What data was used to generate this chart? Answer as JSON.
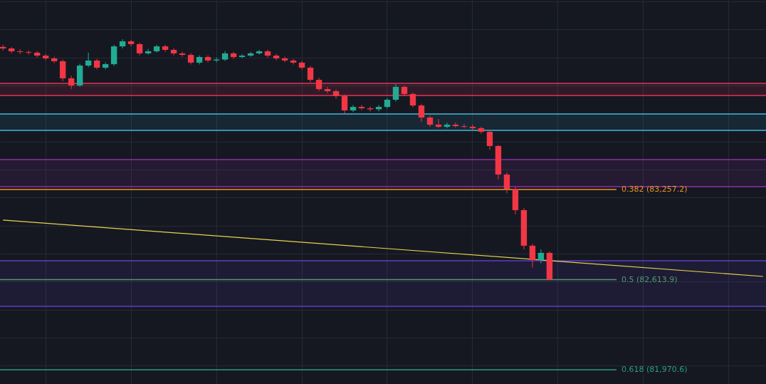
{
  "chart_data": {
    "type": "candlestick",
    "tick_labels": false,
    "grid": true,
    "categories": [
      null,
      null,
      null,
      null,
      null,
      null,
      null,
      null,
      null,
      null,
      null,
      null,
      null,
      null,
      null,
      null,
      null,
      null,
      null,
      null,
      null,
      null,
      null,
      null,
      null,
      null,
      null,
      null,
      null,
      null,
      null,
      null,
      null,
      null,
      null,
      null,
      null,
      null,
      null,
      null,
      null,
      null,
      null,
      null,
      null,
      null,
      null,
      null,
      null,
      null,
      null,
      null,
      null,
      null,
      null,
      null,
      null,
      null,
      null,
      null,
      null,
      null,
      null,
      null,
      null,
      null,
      null,
      null,
      null,
      null,
      null,
      null,
      null,
      null,
      null,
      null,
      null,
      null,
      null,
      null,
      null,
      null,
      null,
      null,
      null,
      null,
      null,
      null,
      null,
      null
    ],
    "ylim": [
      81869,
      84610
    ],
    "ohlc": [
      [
        84275,
        84290,
        84250,
        84264
      ],
      [
        84264,
        84275,
        84230,
        84244
      ],
      [
        84244,
        84258,
        84225,
        84239
      ],
      [
        84239,
        84250,
        84220,
        84234
      ],
      [
        84234,
        84245,
        84200,
        84213
      ],
      [
        84213,
        84225,
        84180,
        84193
      ],
      [
        84193,
        84205,
        84160,
        84173
      ],
      [
        84173,
        84185,
        84030,
        84051
      ],
      [
        84051,
        84070,
        83975,
        84000
      ],
      [
        84000,
        84155,
        83990,
        84142
      ],
      [
        84142,
        84235,
        84130,
        84178
      ],
      [
        84178,
        84190,
        84115,
        84127
      ],
      [
        84127,
        84165,
        84115,
        84152
      ],
      [
        84152,
        84290,
        84140,
        84279
      ],
      [
        84279,
        84330,
        84265,
        84315
      ],
      [
        84315,
        84325,
        84280,
        84295
      ],
      [
        84295,
        84305,
        84215,
        84229
      ],
      [
        84229,
        84260,
        84220,
        84244
      ],
      [
        84244,
        84290,
        84235,
        84279
      ],
      [
        84279,
        84290,
        84240,
        84254
      ],
      [
        84254,
        84265,
        84215,
        84229
      ],
      [
        84229,
        84240,
        84205,
        84218
      ],
      [
        84218,
        84230,
        84150,
        84163
      ],
      [
        84163,
        84215,
        84150,
        84203
      ],
      [
        84203,
        84215,
        84165,
        84178
      ],
      [
        84178,
        84200,
        84165,
        84185
      ],
      [
        84185,
        84245,
        84175,
        84229
      ],
      [
        84229,
        84240,
        84190,
        84203
      ],
      [
        84203,
        84225,
        84195,
        84213
      ],
      [
        84213,
        84240,
        84205,
        84229
      ],
      [
        84229,
        84255,
        84220,
        84244
      ],
      [
        84244,
        84255,
        84200,
        84213
      ],
      [
        84213,
        84225,
        84180,
        84193
      ],
      [
        84193,
        84205,
        84165,
        84178
      ],
      [
        84178,
        84190,
        84150,
        84163
      ],
      [
        84163,
        84175,
        84115,
        84127
      ],
      [
        84127,
        84140,
        84025,
        84040
      ],
      [
        84040,
        84055,
        83960,
        83974
      ],
      [
        83974,
        83990,
        83945,
        83959
      ],
      [
        83959,
        83970,
        83905,
        83924
      ],
      [
        83924,
        83935,
        83800,
        83822
      ],
      [
        83822,
        83860,
        83810,
        83847
      ],
      [
        83847,
        83860,
        83825,
        83837
      ],
      [
        83837,
        83850,
        83815,
        83830
      ],
      [
        83830,
        83860,
        83815,
        83847
      ],
      [
        83847,
        83910,
        83835,
        83898
      ],
      [
        83898,
        84010,
        83885,
        83990
      ],
      [
        83990,
        84000,
        83925,
        83939
      ],
      [
        83939,
        83950,
        83845,
        83857
      ],
      [
        83857,
        83870,
        83740,
        83771
      ],
      [
        83771,
        83785,
        83705,
        83720
      ],
      [
        83720,
        83760,
        83695,
        83705
      ],
      [
        83705,
        83735,
        83695,
        83720
      ],
      [
        83720,
        83735,
        83700,
        83710
      ],
      [
        83710,
        83725,
        83695,
        83705
      ],
      [
        83705,
        83720,
        83685,
        83695
      ],
      [
        83695,
        83705,
        83655,
        83669
      ],
      [
        83669,
        83680,
        83540,
        83568
      ],
      [
        83568,
        83575,
        83330,
        83364
      ],
      [
        83364,
        83380,
        83230,
        83262
      ],
      [
        83262,
        83275,
        83080,
        83110
      ],
      [
        83110,
        83125,
        82830,
        82856
      ],
      [
        82856,
        82870,
        82700,
        82754
      ],
      [
        82754,
        82830,
        82730,
        82805
      ],
      [
        82805,
        82815,
        82610,
        82614
      ],
      null,
      null,
      null,
      null,
      null,
      null,
      null,
      null,
      null,
      null,
      null,
      null,
      null,
      null,
      null,
      null,
      null,
      null,
      null,
      null,
      null,
      null,
      null,
      null,
      null
    ],
    "series": [
      {
        "type": "line",
        "color": "#e8d44d",
        "values": [
          83039,
          null,
          null,
          null,
          null,
          null,
          null,
          null,
          null,
          null,
          null,
          null,
          null,
          null,
          null,
          null,
          null,
          null,
          null,
          null,
          null,
          null,
          null,
          null,
          null,
          null,
          null,
          null,
          null,
          null,
          null,
          null,
          null,
          null,
          null,
          null,
          null,
          null,
          null,
          null,
          null,
          null,
          null,
          null,
          null,
          null,
          null,
          null,
          null,
          null,
          null,
          null,
          null,
          null,
          null,
          null,
          null,
          null,
          null,
          null,
          null,
          null,
          null,
          null,
          null,
          null,
          null,
          null,
          null,
          null,
          null,
          null,
          null,
          null,
          null,
          null,
          null,
          null,
          null,
          null,
          null,
          null,
          null,
          null,
          null,
          null,
          null,
          null,
          null,
          82637
        ]
      }
    ],
    "bands": [
      {
        "axis": "y",
        "from": 83929,
        "to": 84015,
        "color": "#e0355a"
      },
      {
        "axis": "y",
        "from": 83679,
        "to": 83796,
        "color": "#2b90b8"
      },
      {
        "axis": "y",
        "from": 83278,
        "to": 83471,
        "color": "#8e2fa8"
      },
      {
        "axis": "y",
        "from": 82423,
        "to": 82749,
        "color": "#5b3fbf"
      }
    ],
    "ref_lines": [
      {
        "axis": "y",
        "value": 84015,
        "color": "#e0355a"
      },
      {
        "axis": "y",
        "value": 83929,
        "color": "#e0355a"
      },
      {
        "axis": "y",
        "value": 83796,
        "color": "#3fb8d6"
      },
      {
        "axis": "y",
        "value": 83679,
        "color": "#3fb8d6"
      },
      {
        "axis": "y",
        "value": 83471,
        "color": "#8e2fa8"
      },
      {
        "axis": "y",
        "value": 83278,
        "color": "#8e2fa8"
      },
      {
        "axis": "y",
        "value": 83257.2,
        "label": "0.382 (83,257.2)",
        "color": "#f0951e"
      },
      {
        "axis": "y",
        "value": 82749,
        "color": "#5b3fbf"
      },
      {
        "axis": "y",
        "value": 82613.9,
        "label": "0.5 (82,613.9)",
        "color": "#4f9a6a"
      },
      {
        "axis": "y",
        "value": 82423,
        "color": "#5b3fbf"
      },
      {
        "axis": "y",
        "value": 81970.6,
        "label": "0.618 (81,970.6)",
        "color": "#2a9d80"
      }
    ]
  }
}
